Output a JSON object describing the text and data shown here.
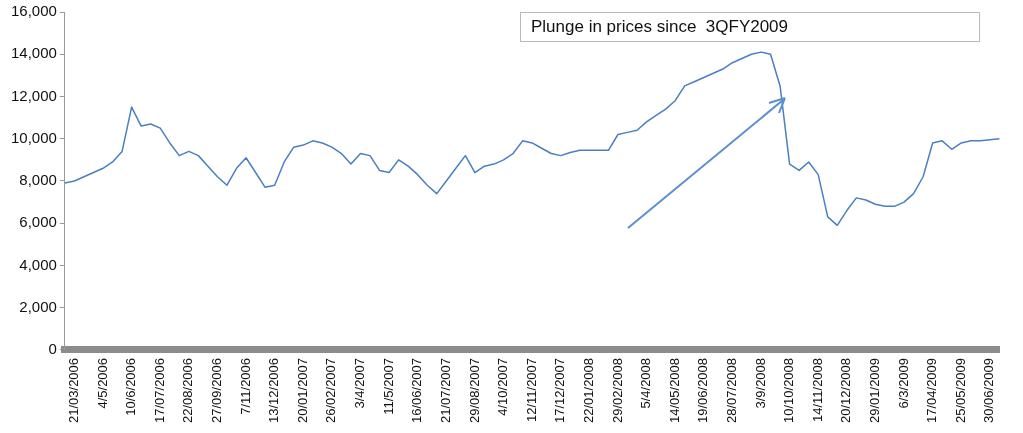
{
  "chart_data": {
    "type": "line",
    "categories": [
      null,
      "21/03/2006",
      null,
      null,
      "4/5/2006",
      null,
      null,
      "10/6/2006",
      null,
      null,
      "17/07/2006",
      null,
      null,
      "22/08/2006",
      null,
      null,
      "27/09/2006",
      null,
      null,
      "7/11/2006",
      null,
      null,
      "13/12/2006",
      null,
      null,
      "20/01/2007",
      null,
      null,
      "26/02/2007",
      null,
      null,
      "3/4/2007",
      null,
      null,
      "11/5/2007",
      null,
      null,
      "16/06/2007",
      null,
      null,
      "21/07/2007",
      null,
      null,
      "29/08/2007",
      null,
      null,
      "4/10/2007",
      null,
      null,
      "12/11/2007",
      null,
      null,
      "17/12/2007",
      null,
      null,
      "22/01/2008",
      null,
      null,
      "29/02/2008",
      null,
      null,
      "5/4/2008",
      null,
      null,
      "14/05/2008",
      null,
      null,
      "19/06/2008",
      null,
      null,
      "28/07/2008",
      null,
      null,
      "3/9/2008",
      null,
      null,
      "10/10/2008",
      null,
      null,
      "14/11/2008",
      null,
      null,
      "20/12/2008",
      null,
      null,
      "29/01/2009",
      null,
      null,
      "6/3/2009",
      null,
      null,
      "17/04/2009",
      null,
      null,
      "25/05/2009",
      null,
      null,
      "30/06/2009",
      null
    ],
    "series": [
      {
        "color": "#4a7fc1",
        "values": [
          7900,
          8000,
          8200,
          8400,
          8600,
          8900,
          9400,
          11500,
          10600,
          10700,
          10500,
          9800,
          9200,
          9400,
          9200,
          8700,
          8200,
          7800,
          8600,
          9100,
          8400,
          7700,
          7800,
          8900,
          9600,
          9700,
          9900,
          9800,
          9600,
          9300,
          8800,
          9300,
          9200,
          8500,
          8400,
          9000,
          8700,
          8300,
          7800,
          7400,
          8000,
          8600,
          9200,
          8400,
          8700,
          8800,
          9000,
          9300,
          9900,
          9800,
          9550,
          9300,
          9200,
          9350,
          9450,
          9450,
          9450,
          9450,
          10200,
          10300,
          10400,
          10800,
          11100,
          11400,
          11800,
          12500,
          12700,
          12900,
          13100,
          13300,
          13600,
          13800,
          14000,
          14100,
          14000,
          12500,
          8800,
          8500,
          8900,
          8300,
          6300,
          5900,
          6600,
          7200,
          7100,
          6900,
          6800,
          6800,
          7000,
          7400,
          8200,
          9800,
          9900,
          9500,
          9800,
          9900,
          9900,
          9950,
          10000
        ]
      }
    ],
    "ylim": [
      0,
      16000
    ],
    "yticks": [
      {
        "value": 0,
        "label": "0"
      },
      {
        "value": 2000,
        "label": "2,000"
      },
      {
        "value": 4000,
        "label": "4,000"
      },
      {
        "value": 6000,
        "label": "6,000"
      },
      {
        "value": 8000,
        "label": "8,000"
      },
      {
        "value": 10000,
        "label": "10,000"
      },
      {
        "value": 12000,
        "label": "12,000"
      },
      {
        "value": 14000,
        "label": "14,000"
      },
      {
        "value": 16000,
        "label": "16,000"
      }
    ],
    "marker": "none",
    "line_style": "solid",
    "legend": false,
    "annotations": [
      "Plunge in prices since  3QFY2009"
    ]
  }
}
